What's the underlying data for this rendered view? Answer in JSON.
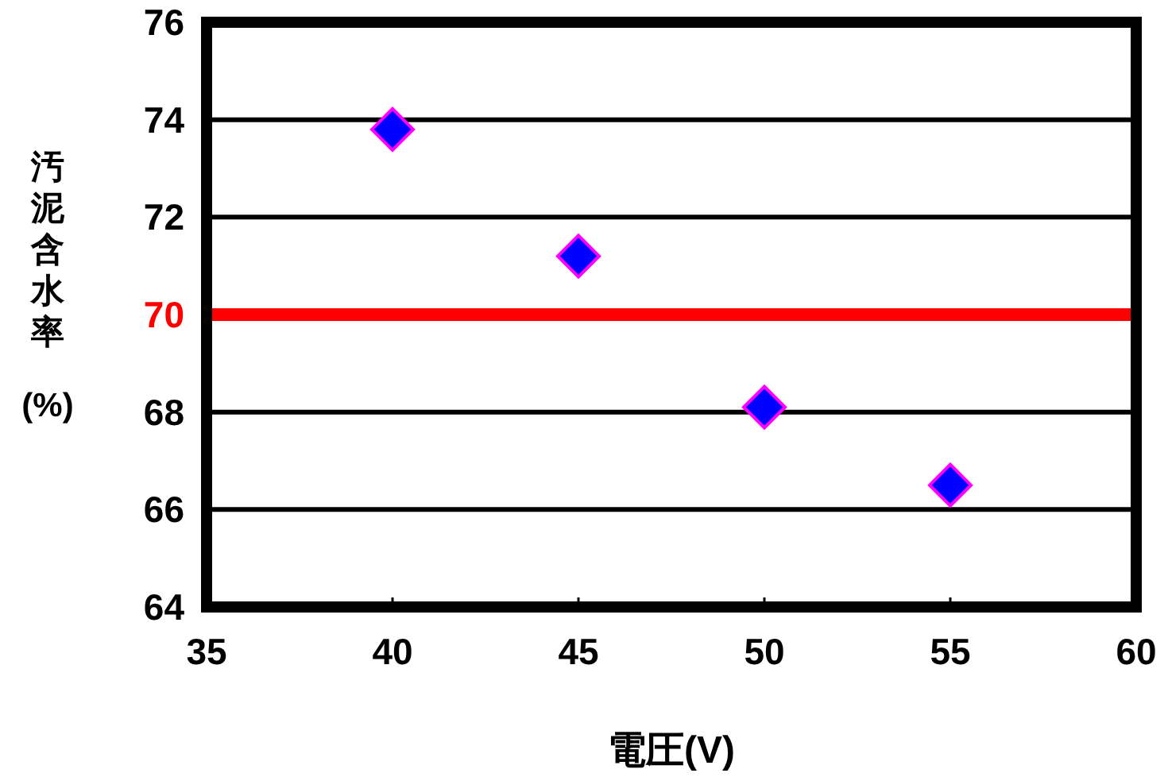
{
  "chart_data": {
    "type": "scatter",
    "xlabel": "電圧(V)",
    "ylabel": "汚泥含水率(%)",
    "x": [
      40,
      45,
      50,
      55
    ],
    "series": [
      {
        "color": "#0000ff",
        "values": [
          73.8,
          71.2,
          68.1,
          66.5
        ]
      }
    ],
    "marker": "diamond",
    "xlim": [
      35,
      60
    ],
    "xticks": [
      35,
      40,
      45,
      50,
      55,
      60
    ],
    "ylim": [
      64,
      76
    ],
    "yticks": [
      64,
      66,
      68,
      70,
      72,
      74,
      76
    ],
    "grid": "y",
    "ref_lines": [
      {
        "axis": "y",
        "value": 70,
        "color": "#ff0000"
      }
    ]
  }
}
